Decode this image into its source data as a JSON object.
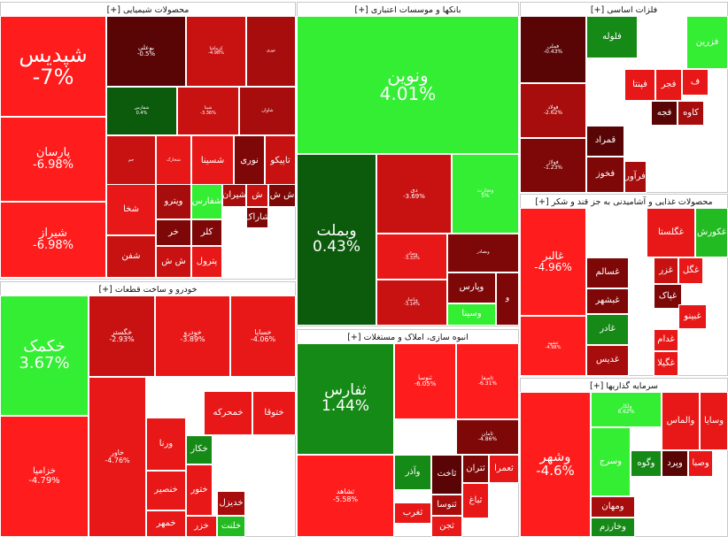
{
  "colors": {
    "r1": "#ff1c1c",
    "r2": "#e81818",
    "r3": "#c81212",
    "r4": "#a80d0d",
    "r5": "#7e0808",
    "r6": "#5a0505",
    "g1": "#33ee33",
    "g2": "#22bb22",
    "g3": "#168a16",
    "g4": "#0c5a0c"
  },
  "sectors": [
    {
      "id": "chemical",
      "title": "محصولات شیمیایی [+]",
      "tiles": [
        {
          "n": "شپدیس",
          "p": "-7%",
          "c": "r1",
          "f": 24
        },
        {
          "n": "پارسان",
          "p": "-6.98%",
          "c": "r1",
          "f": 13
        },
        {
          "n": "شیراز",
          "p": "-6.98%",
          "c": "r1",
          "f": 13
        },
        {
          "n": "بوعلی",
          "p": "-0.5%",
          "c": "r6",
          "f": 7
        },
        {
          "n": "کرماشا",
          "p": "-4.98%",
          "c": "r3",
          "f": 5
        },
        {
          "n": "نوری-b",
          "p": "",
          "c": "r4",
          "f": 5
        },
        {
          "n": "شفارس-b",
          "p": "0.4%",
          "c": "g4",
          "f": 5
        },
        {
          "n": "شپنا",
          "p": "-3.36%",
          "c": "r3",
          "f": 5
        },
        {
          "n": "شاوان",
          "p": "",
          "c": "r4",
          "f": 5
        },
        {
          "n": "جم",
          "p": "",
          "c": "r3",
          "f": 5
        },
        {
          "n": "شخارک",
          "p": "",
          "c": "r2",
          "f": 5
        },
        {
          "n": "شسینا",
          "p": "",
          "c": "r2",
          "f": 10
        },
        {
          "n": "نوری",
          "p": "",
          "c": "r5",
          "f": 10
        },
        {
          "n": "تاپیکو",
          "p": "",
          "c": "r3",
          "f": 10
        },
        {
          "n": "شخا",
          "p": "",
          "c": "r2",
          "f": 10
        },
        {
          "n": "ویترو",
          "p": "",
          "c": "r4",
          "f": 10
        },
        {
          "n": "شفارس",
          "p": "",
          "c": "g1",
          "f": 10
        },
        {
          "n": "شیران",
          "p": "",
          "c": "r4",
          "f": 10
        },
        {
          "n": "ش",
          "p": "",
          "c": "r3",
          "f": 10
        },
        {
          "n": "ش ش",
          "p": "",
          "c": "r5",
          "f": 10
        },
        {
          "n": "خر",
          "p": "",
          "c": "r5",
          "f": 10
        },
        {
          "n": "کلر",
          "p": "",
          "c": "r5",
          "f": 10
        },
        {
          "n": "شفن",
          "p": "",
          "c": "r3",
          "f": 10
        },
        {
          "n": "ش ش",
          "p": "",
          "c": "r3",
          "f": 10
        },
        {
          "n": "پترول",
          "p": "",
          "c": "r2",
          "f": 10
        },
        {
          "n": "شاراک",
          "p": "",
          "c": "r5",
          "f": 10
        },
        {
          "n": "پارس",
          "p": "",
          "c": "r3",
          "f": 10
        },
        {
          "n": "آ",
          "p": "",
          "c": "r4",
          "f": 8
        }
      ]
    },
    {
      "id": "banks",
      "title": "بانکها و موسسات اعتباری [+]",
      "tiles": [
        {
          "n": "ونوین",
          "p": "4.01%",
          "c": "g1",
          "f": 20
        },
        {
          "n": "وبملت",
          "p": "0.43%",
          "c": "g4",
          "f": 17
        },
        {
          "n": "دی",
          "p": "-3.69%",
          "c": "r3",
          "f": 7
        },
        {
          "n": "وتجارت",
          "p": "5%",
          "c": "g1",
          "f": 6
        },
        {
          "n": "وصادر",
          "p": "-3.33%",
          "c": "r2",
          "f": 5
        },
        {
          "n": "وبصادر",
          "p": "",
          "c": "r5",
          "f": 5
        },
        {
          "n": "وپاسار",
          "p": "-3.14%",
          "c": "r3",
          "f": 5
        },
        {
          "n": "وپارس",
          "p": "",
          "c": "r5",
          "f": 10
        },
        {
          "n": "وسینا",
          "p": "",
          "c": "g1",
          "f": 10
        },
        {
          "n": "و",
          "p": "",
          "c": "r5",
          "f": 9
        }
      ]
    },
    {
      "id": "metals",
      "title": "فلزات اساسی [+]",
      "tiles": [
        {
          "n": "فملی",
          "p": "-0.43%",
          "c": "r6",
          "f": 6
        },
        {
          "n": "فولاد",
          "p": "-2.62%",
          "c": "r4",
          "f": 6
        },
        {
          "n": "فولاژ",
          "p": "-1.23%",
          "c": "r5",
          "f": 6
        },
        {
          "n": "فلوله",
          "p": "",
          "c": "g3",
          "f": 10
        },
        {
          "n": "فزرین",
          "p": "",
          "c": "g1",
          "f": 10
        },
        {
          "n": "فپنتا",
          "p": "",
          "c": "r2",
          "f": 10
        },
        {
          "n": "فجر",
          "p": "",
          "c": "r2",
          "f": 10
        },
        {
          "n": "ف",
          "p": "",
          "c": "r2",
          "f": 10
        },
        {
          "n": "کاوه",
          "p": "",
          "c": "r4",
          "f": 10
        },
        {
          "n": "فجه",
          "p": "",
          "c": "r6",
          "f": 10
        },
        {
          "n": "قمراد",
          "p": "",
          "c": "r6",
          "f": 10
        },
        {
          "n": "فخوز",
          "p": "",
          "c": "r5",
          "f": 10
        },
        {
          "n": "فرآور",
          "p": "",
          "c": "r4",
          "f": 10
        }
      ]
    },
    {
      "id": "food",
      "title": "محصولات غذایی و آشامیدنی به جز قند و شکر [+]",
      "tiles": [
        {
          "n": "غالبر",
          "p": "-4.96%",
          "c": "r1",
          "f": 12
        },
        {
          "n": "غشهد",
          "p": "-4.98%",
          "c": "r1",
          "f": 5
        },
        {
          "n": "غگلستا",
          "p": "",
          "c": "r2",
          "f": 10
        },
        {
          "n": "غکورش",
          "p": "",
          "c": "g2",
          "f": 10
        },
        {
          "n": "غسالم",
          "p": "",
          "c": "r5",
          "f": 10
        },
        {
          "n": "غبشهر",
          "p": "",
          "c": "r5",
          "f": 10
        },
        {
          "n": "غادر",
          "p": "",
          "c": "g3",
          "f": 10
        },
        {
          "n": "غدیس",
          "p": "",
          "c": "r4",
          "f": 10
        },
        {
          "n": "غزر",
          "p": "",
          "c": "r3",
          "f": 10
        },
        {
          "n": "غگل",
          "p": "",
          "c": "r2",
          "f": 10
        },
        {
          "n": "غپاک",
          "p": "",
          "c": "r5",
          "f": 10
        },
        {
          "n": "غبینو",
          "p": "",
          "c": "r2",
          "f": 10
        },
        {
          "n": "غدام",
          "p": "",
          "c": "r2",
          "f": 10
        },
        {
          "n": "غگیلا",
          "p": "",
          "c": "r2",
          "f": 10
        }
      ]
    },
    {
      "id": "auto",
      "title": "خودرو و ساخت قطعات [+]",
      "tiles": [
        {
          "n": "خکمک",
          "p": "3.67%",
          "c": "g1",
          "f": 18
        },
        {
          "n": "خزامیا",
          "p": "-4.79%",
          "c": "r1",
          "f": 10
        },
        {
          "n": "خگستر",
          "p": "-2.93%",
          "c": "r3",
          "f": 8
        },
        {
          "n": "خودرو",
          "p": "-3.89%",
          "c": "r2",
          "f": 8
        },
        {
          "n": "خساپا",
          "p": "-4.06%",
          "c": "r2",
          "f": 8
        },
        {
          "n": "خاور",
          "p": "-4.76%",
          "c": "r2",
          "f": 8
        },
        {
          "n": "خمحرکه",
          "p": "",
          "c": "r2",
          "f": 10
        },
        {
          "n": "ختوقا",
          "p": "",
          "c": "r2",
          "f": 10
        },
        {
          "n": "ورنا",
          "p": "",
          "c": "r2",
          "f": 10
        },
        {
          "n": "خنصیر",
          "p": "",
          "c": "r2",
          "f": 10
        },
        {
          "n": "خمهر",
          "p": "",
          "c": "r2",
          "f": 10
        },
        {
          "n": "ختور",
          "p": "",
          "c": "r2",
          "f": 10
        },
        {
          "n": "خلنت",
          "p": "",
          "c": "g2",
          "f": 10
        },
        {
          "n": "خدیزل",
          "p": "",
          "c": "r4",
          "f": 10
        },
        {
          "n": "خکار",
          "p": "",
          "c": "g3",
          "f": 10
        },
        {
          "n": "خزر",
          "p": "",
          "c": "r2",
          "f": 10
        }
      ]
    },
    {
      "id": "construction",
      "title": "انبوه سازی، املاک و مستغلات [+]",
      "tiles": [
        {
          "n": "ثفارس",
          "p": "1.44%",
          "c": "g3",
          "f": 17
        },
        {
          "n": "ثشاهد",
          "p": "-5.58%",
          "c": "r1",
          "f": 8
        },
        {
          "n": "ثنوسا",
          "p": "-6.05%",
          "c": "r1",
          "f": 7
        },
        {
          "n": "ثاصفا",
          "p": "-6.31%",
          "c": "r1",
          "f": 6
        },
        {
          "n": "ثامان",
          "p": "-4.86%",
          "c": "r5",
          "f": 6
        },
        {
          "n": "وآذر",
          "p": "",
          "c": "g3",
          "f": 10
        },
        {
          "n": "ثاخت",
          "p": "",
          "c": "r6",
          "f": 10
        },
        {
          "n": "ثتران",
          "p": "",
          "c": "r5",
          "f": 10
        },
        {
          "n": "ثعمرا",
          "p": "",
          "c": "r2",
          "f": 10
        },
        {
          "n": "ثنوسا-b",
          "p": "",
          "c": "r4",
          "f": 10
        },
        {
          "n": "ثباغ",
          "p": "",
          "c": "r2",
          "f": 10
        },
        {
          "n": "ثغرب",
          "p": "",
          "c": "r2",
          "f": 10
        },
        {
          "n": "ثجن",
          "p": "",
          "c": "r2",
          "f": 10
        }
      ]
    },
    {
      "id": "investment",
      "title": "سرمایه گذاریها [+]",
      "tiles": [
        {
          "n": "وشهر",
          "p": "-4.6%",
          "c": "r1",
          "f": 15
        },
        {
          "n": "ولکار",
          "p": "6.62%",
          "c": "g1",
          "f": 6
        },
        {
          "n": "والماس",
          "p": "",
          "c": "r2",
          "f": 10
        },
        {
          "n": "وسایا",
          "p": "",
          "c": "r2",
          "f": 10
        },
        {
          "n": "وسرج",
          "p": "",
          "c": "g1",
          "f": 10
        },
        {
          "n": "وگوه",
          "p": "",
          "c": "g3",
          "f": 10
        },
        {
          "n": "وپرد",
          "p": "",
          "c": "r6",
          "f": 10
        },
        {
          "n": "وصبا",
          "p": "",
          "c": "r2",
          "f": 10
        },
        {
          "n": "ومهان",
          "p": "",
          "c": "r4",
          "f": 10
        },
        {
          "n": "وخارزم",
          "p": "",
          "c": "g3",
          "f": 10
        }
      ]
    }
  ]
}
